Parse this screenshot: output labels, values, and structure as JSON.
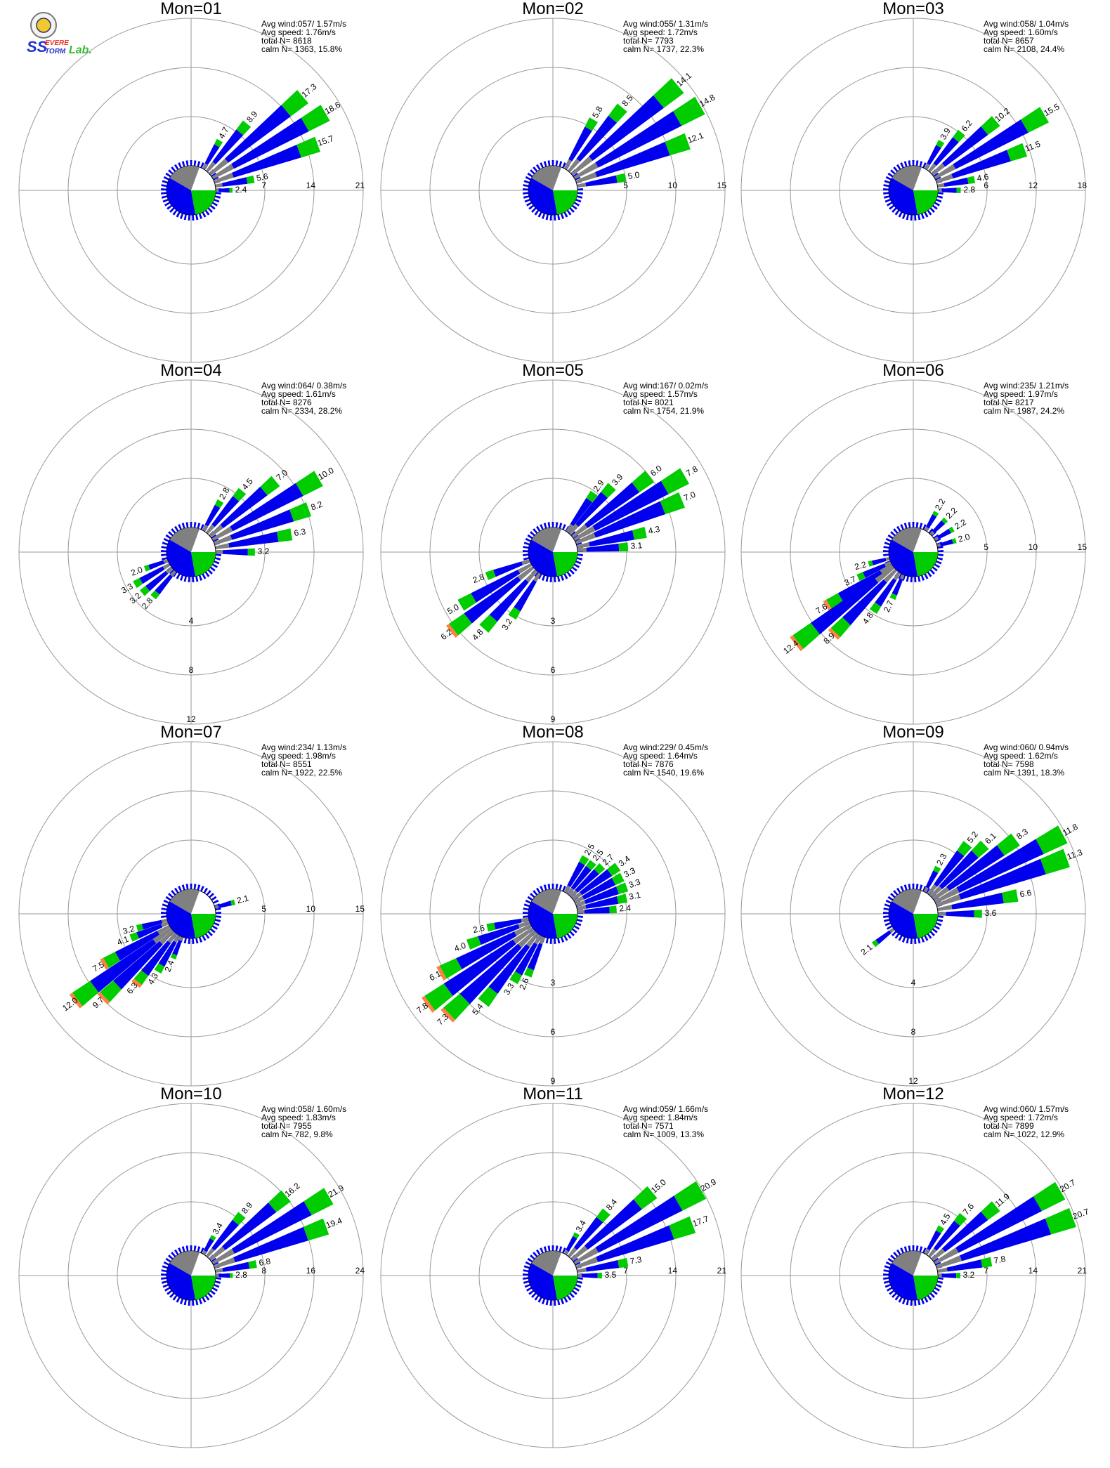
{
  "logo": {
    "letters": "SS",
    "word1": "EVERE",
    "word2": "TORM",
    "word3": "Lab."
  },
  "colors": {
    "low": "#0000ee",
    "mid": "#00cc00",
    "high": "#ff8040",
    "calm": "#808080",
    "grid": "#999999",
    "sector_blue": "#0000ee",
    "sector_green": "#00cc00",
    "sector_gray": "#808080"
  },
  "chart_data": [
    {
      "type": "wind_rose",
      "title": "Mon=01",
      "avg_wind": "Avg wind:057/ 1.57m/s",
      "avg_speed": "Avg speed: 1.76m/s",
      "total_n": "total N=      8618",
      "calm_n": "calm N=   1363,  15.8%",
      "rings": [
        7,
        14,
        21
      ],
      "ring_labels": [
        "7",
        "14",
        "21"
      ],
      "ring_label_dir": "east",
      "petals": [
        {
          "dir": 30,
          "value": 4.7,
          "label": "4.7"
        },
        {
          "dir": 40,
          "value": 8.9,
          "label": "8.9"
        },
        {
          "dir": 50,
          "value": 17.3,
          "label": "17.3"
        },
        {
          "dir": 60,
          "value": 18.6,
          "label": "18.6"
        },
        {
          "dir": 70,
          "value": 15.7,
          "label": "15.7"
        },
        {
          "dir": 80,
          "value": 5.6,
          "label": "5.6"
        },
        {
          "dir": 90,
          "value": 2.4,
          "label": "2.4"
        }
      ],
      "calm_fraction": 0.158
    },
    {
      "type": "wind_rose",
      "title": "Mon=02",
      "avg_wind": "Avg wind:055/ 1.31m/s",
      "avg_speed": "Avg speed: 1.72m/s",
      "total_n": "total N=      7793",
      "calm_n": "calm N=   1737,  22.3%",
      "rings": [
        5,
        10,
        15
      ],
      "ring_labels": [
        "5",
        "10",
        "15"
      ],
      "ring_label_dir": "east",
      "petals": [
        {
          "dir": 30,
          "value": 5.8,
          "label": "5.8"
        },
        {
          "dir": 40,
          "value": 8.5,
          "label": "8.5"
        },
        {
          "dir": 50,
          "value": 14.1,
          "label": "14.1"
        },
        {
          "dir": 60,
          "value": 14.8,
          "label": "14.8"
        },
        {
          "dir": 70,
          "value": 12.1,
          "label": "12.1"
        },
        {
          "dir": 80,
          "value": 5.0,
          "label": "5.0"
        }
      ],
      "calm_fraction": 0.223
    },
    {
      "type": "wind_rose",
      "title": "Mon=03",
      "avg_wind": "Avg wind:058/ 1.04m/s",
      "avg_speed": "Avg speed: 1.60m/s",
      "total_n": "total N=      8657",
      "calm_n": "calm N=   2108,  24.4%",
      "rings": [
        6,
        12,
        18
      ],
      "ring_labels": [
        "6",
        "12",
        "18"
      ],
      "ring_label_dir": "east",
      "petals": [
        {
          "dir": 30,
          "value": 3.9,
          "label": "3.9"
        },
        {
          "dir": 40,
          "value": 6.2,
          "label": "6.2"
        },
        {
          "dir": 50,
          "value": 10.2,
          "label": "10.2"
        },
        {
          "dir": 60,
          "value": 15.5,
          "label": "15.5"
        },
        {
          "dir": 70,
          "value": 11.5,
          "label": "11.5"
        },
        {
          "dir": 80,
          "value": 4.6,
          "label": "4.6"
        },
        {
          "dir": 90,
          "value": 2.8,
          "label": "2.8"
        }
      ],
      "calm_fraction": 0.244
    },
    {
      "type": "wind_rose",
      "title": "Mon=04",
      "avg_wind": "Avg wind:064/ 0.38m/s",
      "avg_speed": "Avg speed: 1.61m/s",
      "total_n": "total N=      8276",
      "calm_n": "calm N=   2334,  28.2%",
      "rings": [
        4,
        8,
        12
      ],
      "ring_labels": [
        "4",
        "8",
        "12"
      ],
      "ring_label_dir": "south",
      "petals": [
        {
          "dir": 30,
          "value": 2.8,
          "label": "2.8"
        },
        {
          "dir": 40,
          "value": 4.5,
          "label": "4.5"
        },
        {
          "dir": 50,
          "value": 7.0,
          "label": "7.0"
        },
        {
          "dir": 60,
          "value": 10.0,
          "label": "10.0"
        },
        {
          "dir": 70,
          "value": 8.2,
          "label": "8.2"
        },
        {
          "dir": 80,
          "value": 6.3,
          "label": "6.3"
        },
        {
          "dir": 90,
          "value": 3.2,
          "label": "3.2"
        },
        {
          "dir": 250,
          "value": 2.0,
          "label": "2.0"
        },
        {
          "dir": 240,
          "value": 3.3,
          "label": "3.3"
        },
        {
          "dir": 230,
          "value": 3.2,
          "label": "3.2"
        },
        {
          "dir": 220,
          "value": 2.8,
          "label": "2.8"
        }
      ],
      "calm_fraction": 0.282
    },
    {
      "type": "wind_rose",
      "title": "Mon=05",
      "avg_wind": "Avg wind:167/ 0.02m/s",
      "avg_speed": "Avg speed: 1.57m/s",
      "total_n": "total N=      8021",
      "calm_n": "calm N=   1754,  21.9%",
      "rings": [
        3,
        6,
        9
      ],
      "ring_labels": [
        "3",
        "6",
        "9"
      ],
      "ring_label_dir": "south",
      "petals": [
        {
          "dir": 35,
          "value": 2.9,
          "label": "2.9"
        },
        {
          "dir": 42,
          "value": 3.9,
          "label": "3.9"
        },
        {
          "dir": 52,
          "value": 6.0,
          "label": "6.0"
        },
        {
          "dir": 60,
          "value": 7.8,
          "label": "7.8"
        },
        {
          "dir": 68,
          "value": 7.0,
          "label": "7.0"
        },
        {
          "dir": 78,
          "value": 4.3,
          "label": "4.3"
        },
        {
          "dir": 86,
          "value": 3.1,
          "label": "3.1"
        },
        {
          "dir": 250,
          "value": 2.8,
          "label": "2.8"
        },
        {
          "dir": 240,
          "value": 5.0,
          "label": "5.0"
        },
        {
          "dir": 232,
          "value": 6.2,
          "label": "6.2"
        },
        {
          "dir": 222,
          "value": 4.8,
          "label": "4.8"
        },
        {
          "dir": 212,
          "value": 3.2,
          "label": "3.2"
        }
      ],
      "calm_fraction": 0.219
    },
    {
      "type": "wind_rose",
      "title": "Mon=06",
      "avg_wind": "Avg wind:235/ 1.21m/s",
      "avg_speed": "Avg speed: 1.97m/s",
      "total_n": "total N=      8217",
      "calm_n": "calm N=   1987,  24.2%",
      "rings": [
        5,
        10,
        15
      ],
      "ring_labels": [
        "5",
        "10",
        "15"
      ],
      "ring_label_dir": "east",
      "petals": [
        {
          "dir": 30,
          "value": 2.2,
          "label": "2.2"
        },
        {
          "dir": 45,
          "value": 2.2,
          "label": "2.2"
        },
        {
          "dir": 60,
          "value": 2.2,
          "label": "2.2"
        },
        {
          "dir": 75,
          "value": 2.0,
          "label": "2.0"
        },
        {
          "dir": 255,
          "value": 2.2,
          "label": "2.2"
        },
        {
          "dir": 245,
          "value": 3.7,
          "label": "3.7"
        },
        {
          "dir": 238,
          "value": 7.6,
          "label": "7.6"
        },
        {
          "dir": 232,
          "value": 12.4,
          "label": "12.4"
        },
        {
          "dir": 224,
          "value": 8.9,
          "label": "8.9"
        },
        {
          "dir": 214,
          "value": 4.8,
          "label": "4.8"
        },
        {
          "dir": 204,
          "value": 2.7,
          "label": "2.7"
        }
      ],
      "calm_fraction": 0.242
    },
    {
      "type": "wind_rose",
      "title": "Mon=07",
      "avg_wind": "Avg wind:234/ 1.13m/s",
      "avg_speed": "Avg speed: 1.98m/s",
      "total_n": "total N=      8551",
      "calm_n": "calm N=   1922,  22.5%",
      "rings": [
        5,
        10,
        15
      ],
      "ring_labels": [
        "5",
        "10",
        "15"
      ],
      "ring_label_dir": "east",
      "petals": [
        {
          "dir": 75,
          "value": 2.1,
          "label": "2.1"
        },
        {
          "dir": 255,
          "value": 3.2,
          "label": "3.2"
        },
        {
          "dir": 248,
          "value": 4.1,
          "label": "4.1"
        },
        {
          "dir": 240,
          "value": 7.5,
          "label": "7.5"
        },
        {
          "dir": 233,
          "value": 12.0,
          "label": "12.0"
        },
        {
          "dir": 226,
          "value": 9.7,
          "label": "9.7"
        },
        {
          "dir": 218,
          "value": 6.3,
          "label": "6.3"
        },
        {
          "dir": 210,
          "value": 4.3,
          "label": "4.3"
        },
        {
          "dir": 202,
          "value": 2.4,
          "label": "2.4"
        }
      ],
      "calm_fraction": 0.225
    },
    {
      "type": "wind_rose",
      "title": "Mon=08",
      "avg_wind": "Avg wind:229/ 0.45m/s",
      "avg_speed": "Avg speed: 1.64m/s",
      "total_n": "total N=      7876",
      "calm_n": "calm N=   1540,  19.6%",
      "rings": [
        3,
        6,
        9
      ],
      "ring_labels": [
        "3",
        "6",
        "9"
      ],
      "ring_label_dir": "south",
      "petals": [
        {
          "dir": 30,
          "value": 2.5,
          "label": "2.5"
        },
        {
          "dir": 38,
          "value": 2.5,
          "label": "2.5"
        },
        {
          "dir": 46,
          "value": 2.7,
          "label": "2.7"
        },
        {
          "dir": 54,
          "value": 3.4,
          "label": "3.4"
        },
        {
          "dir": 62,
          "value": 3.3,
          "label": "3.3"
        },
        {
          "dir": 70,
          "value": 3.3,
          "label": "3.3"
        },
        {
          "dir": 78,
          "value": 3.1,
          "label": "3.1"
        },
        {
          "dir": 86,
          "value": 2.4,
          "label": "2.4"
        },
        {
          "dir": 258,
          "value": 2.6,
          "label": "2.6"
        },
        {
          "dir": 250,
          "value": 4.0,
          "label": "4.0"
        },
        {
          "dir": 242,
          "value": 6.1,
          "label": "6.1"
        },
        {
          "dir": 234,
          "value": 7.8,
          "label": "7.8"
        },
        {
          "dir": 226,
          "value": 7.3,
          "label": "7.3"
        },
        {
          "dir": 218,
          "value": 5.4,
          "label": "5.4"
        },
        {
          "dir": 210,
          "value": 3.3,
          "label": "3.3"
        },
        {
          "dir": 202,
          "value": 2.6,
          "label": "2.6"
        }
      ],
      "calm_fraction": 0.196
    },
    {
      "type": "wind_rose",
      "title": "Mon=09",
      "avg_wind": "Avg wind:060/ 0.94m/s",
      "avg_speed": "Avg speed: 1.62m/s",
      "total_n": "total N=      7598",
      "calm_n": "calm N=   1391,  18.3%",
      "rings": [
        4,
        8,
        12
      ],
      "ring_labels": [
        "4",
        "8",
        "12"
      ],
      "ring_label_dir": "south",
      "petals": [
        {
          "dir": 28,
          "value": 2.3,
          "label": "2.3"
        },
        {
          "dir": 38,
          "value": 5.2,
          "label": "5.2"
        },
        {
          "dir": 46,
          "value": 6.1,
          "label": "6.1"
        },
        {
          "dir": 54,
          "value": 8.3,
          "label": "8.3"
        },
        {
          "dir": 62,
          "value": 11.8,
          "label": "11.8"
        },
        {
          "dir": 70,
          "value": 11.3,
          "label": "11.3"
        },
        {
          "dir": 80,
          "value": 6.6,
          "label": "6.6"
        },
        {
          "dir": 90,
          "value": 3.6,
          "label": "3.6"
        },
        {
          "dir": 232,
          "value": 2.1,
          "label": "2.1"
        }
      ],
      "calm_fraction": 0.183
    },
    {
      "type": "wind_rose",
      "title": "Mon=10",
      "avg_wind": "Avg wind:058/ 1.60m/s",
      "avg_speed": "Avg speed: 1.83m/s",
      "total_n": "total N=      7955",
      "calm_n": "calm N=    782,   9.8%",
      "rings": [
        8,
        16,
        24
      ],
      "ring_labels": [
        "8",
        "16",
        "24"
      ],
      "ring_label_dir": "east",
      "petals": [
        {
          "dir": 30,
          "value": 3.4,
          "label": "3.4"
        },
        {
          "dir": 40,
          "value": 8.9,
          "label": "8.9"
        },
        {
          "dir": 50,
          "value": 16.2,
          "label": "16.2"
        },
        {
          "dir": 60,
          "value": 21.9,
          "label": "21.9"
        },
        {
          "dir": 70,
          "value": 19.4,
          "label": "19.4"
        },
        {
          "dir": 80,
          "value": 6.8,
          "label": "6.8"
        },
        {
          "dir": 90,
          "value": 2.8,
          "label": "2.8"
        }
      ],
      "calm_fraction": 0.098
    },
    {
      "type": "wind_rose",
      "title": "Mon=11",
      "avg_wind": "Avg wind:059/ 1.66m/s",
      "avg_speed": "Avg speed: 1.84m/s",
      "total_n": "total N=      7571",
      "calm_n": "calm N=   1009,  13.3%",
      "rings": [
        7,
        14,
        21
      ],
      "ring_labels": [
        "7",
        "14",
        "21"
      ],
      "ring_label_dir": "east",
      "petals": [
        {
          "dir": 30,
          "value": 3.4,
          "label": "3.4"
        },
        {
          "dir": 40,
          "value": 8.4,
          "label": "8.4"
        },
        {
          "dir": 50,
          "value": 15.0,
          "label": "15.0"
        },
        {
          "dir": 60,
          "value": 20.9,
          "label": "20.9"
        },
        {
          "dir": 70,
          "value": 17.7,
          "label": "17.7"
        },
        {
          "dir": 80,
          "value": 7.3,
          "label": "7.3"
        },
        {
          "dir": 90,
          "value": 3.5,
          "label": "3.5"
        }
      ],
      "calm_fraction": 0.133
    },
    {
      "type": "wind_rose",
      "title": "Mon=12",
      "avg_wind": "Avg wind:060/ 1.57m/s",
      "avg_speed": "Avg speed: 1.72m/s",
      "total_n": "total N=      7899",
      "calm_n": "calm N=   1022,  12.9%",
      "rings": [
        7,
        14,
        21
      ],
      "ring_labels": [
        "7",
        "14",
        "21"
      ],
      "ring_label_dir": "east",
      "petals": [
        {
          "dir": 30,
          "value": 4.5,
          "label": "4.5"
        },
        {
          "dir": 40,
          "value": 7.6,
          "label": "7.6"
        },
        {
          "dir": 50,
          "value": 11.9,
          "label": "11.9"
        },
        {
          "dir": 60,
          "value": 20.7,
          "label": "20.7"
        },
        {
          "dir": 70,
          "value": 20.7,
          "label": "20.7"
        },
        {
          "dir": 80,
          "value": 7.8,
          "label": "7.8"
        },
        {
          "dir": 90,
          "value": 3.2,
          "label": "3.2"
        }
      ],
      "calm_fraction": 0.129
    }
  ]
}
